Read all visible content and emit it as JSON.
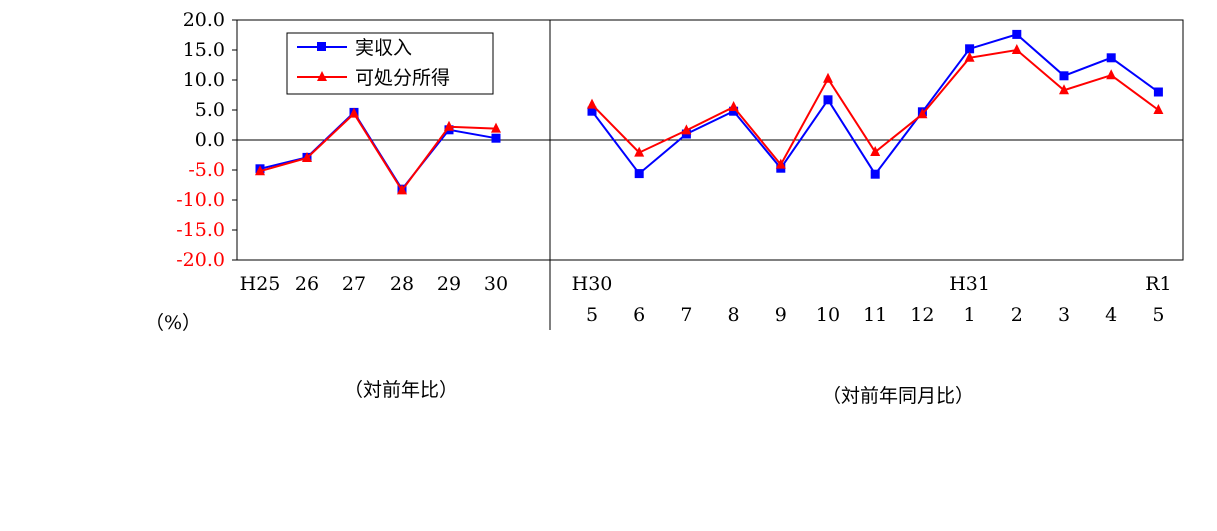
{
  "chart_data": {
    "type": "line",
    "ylim": [
      -20,
      20
    ],
    "yticks": [
      "20.0",
      "15.0",
      "10.0",
      "5.0",
      "0.0",
      "-5.0",
      "-10.0",
      "-15.0",
      "-20.0"
    ],
    "unit_label": "（%）",
    "legend": [
      "実収入",
      "可処分所得"
    ],
    "colors": {
      "series1": "#0000ff",
      "series2": "#ff0000",
      "positive_ticks": "#000000",
      "negative_ticks": "#ff0000"
    },
    "panels": [
      {
        "caption": "（対前年比）",
        "era_labels": [
          "H25",
          "26",
          "27",
          "28",
          "29",
          "30"
        ],
        "categories": [
          "H25",
          "26",
          "27",
          "28",
          "29",
          "30"
        ],
        "series": [
          {
            "name": "実収入",
            "values": [
              -4.8,
              -2.9,
              4.6,
              -8.2,
              1.7,
              0.3
            ]
          },
          {
            "name": "可処分所得",
            "values": [
              -5.2,
              -3.0,
              4.4,
              -8.4,
              2.2,
              1.9
            ]
          }
        ]
      },
      {
        "caption": "（対前年同月比）",
        "era_labels": [
          "H30",
          "",
          "",
          "",
          "",
          "",
          "",
          "",
          "H31",
          "",
          "",
          "",
          "R1"
        ],
        "categories": [
          "5",
          "6",
          "7",
          "8",
          "9",
          "10",
          "11",
          "12",
          "1",
          "2",
          "3",
          "4",
          "5"
        ],
        "series": [
          {
            "name": "実収入",
            "values": [
              4.8,
              -5.6,
              1.0,
              4.8,
              -4.7,
              6.7,
              -5.7,
              4.7,
              15.2,
              17.6,
              10.7,
              13.7,
              8.0
            ]
          },
          {
            "name": "可処分所得",
            "values": [
              5.9,
              -2.1,
              1.6,
              5.5,
              -4.1,
              10.2,
              -2.0,
              4.3,
              13.7,
              15.0,
              8.3,
              10.8,
              5.0
            ]
          }
        ]
      }
    ]
  }
}
